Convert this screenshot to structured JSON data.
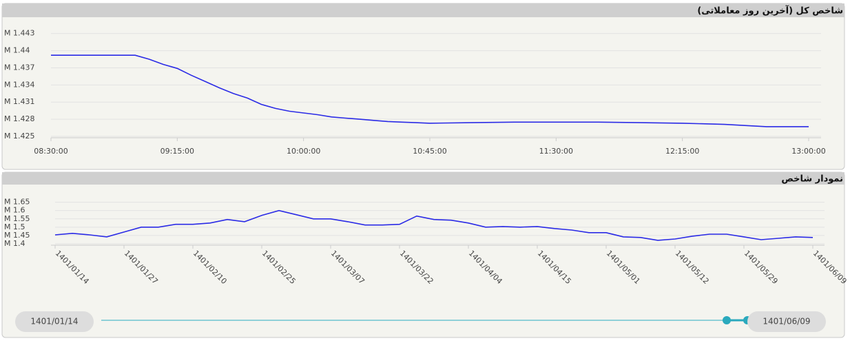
{
  "chart_data": [
    {
      "type": "line",
      "title": "شاخص کل (آخرین روز معاملاتی)",
      "color": "#2a2ae6",
      "grid": true,
      "x": [
        "08:30:00",
        "08:45:00",
        "09:00:00",
        "09:05:00",
        "09:10:00",
        "09:15:00",
        "09:20:00",
        "09:25:00",
        "09:30:00",
        "09:35:00",
        "09:40:00",
        "09:45:00",
        "09:50:00",
        "09:55:00",
        "10:00:00",
        "10:05:00",
        "10:10:00",
        "10:15:00",
        "10:20:00",
        "10:25:00",
        "10:30:00",
        "10:35:00",
        "10:40:00",
        "10:45:00",
        "11:00:00",
        "11:15:00",
        "11:30:00",
        "11:45:00",
        "12:00:00",
        "12:15:00",
        "12:30:00",
        "12:45:00",
        "13:00:00"
      ],
      "values": [
        1.4392,
        1.4392,
        1.4392,
        1.4385,
        1.4376,
        1.4369,
        1.4357,
        1.4346,
        1.4335,
        1.4325,
        1.4317,
        1.4306,
        1.4299,
        1.4294,
        1.4291,
        1.4288,
        1.4284,
        1.4282,
        1.428,
        1.4278,
        1.4276,
        1.4275,
        1.4274,
        1.4273,
        1.4274,
        1.4275,
        1.4275,
        1.4275,
        1.4274,
        1.4273,
        1.4271,
        1.4267,
        1.4267
      ],
      "xlim": [
        "08:30:00",
        "13:04:25"
      ],
      "xticks": [
        "08:30:00",
        "09:15:00",
        "10:00:00",
        "10:45:00",
        "11:30:00",
        "12:15:00",
        "13:00:00"
      ],
      "ylim": [
        1.425,
        1.4455
      ],
      "yticks": [
        {
          "value": 1.425,
          "label": "M 1.425"
        },
        {
          "value": 1.428,
          "label": "M 1.428"
        },
        {
          "value": 1.431,
          "label": "M 1.431"
        },
        {
          "value": 1.434,
          "label": "M 1.434"
        },
        {
          "value": 1.437,
          "label": "M 1.437"
        },
        {
          "value": 1.44,
          "label": "M 1.44"
        },
        {
          "value": 1.443,
          "label": "M 1.443"
        }
      ]
    },
    {
      "type": "line",
      "title": "نمودار شاخص",
      "color": "#2a2ae6",
      "grid": true,
      "categories": [
        "1401/01/14",
        null,
        null,
        null,
        "1401/01/27",
        null,
        null,
        null,
        "1401/02/10",
        null,
        null,
        null,
        "1401/02/25",
        null,
        null,
        null,
        "1401/03/07",
        null,
        null,
        null,
        "1401/03/22",
        null,
        null,
        null,
        "1401/04/04",
        null,
        null,
        null,
        "1401/04/15",
        null,
        null,
        null,
        "1401/05/01",
        null,
        null,
        null,
        "1401/05/12",
        null,
        null,
        null,
        "1401/05/29",
        null,
        null,
        null,
        "1401/06/09"
      ],
      "values": [
        1.454,
        1.463,
        1.454,
        1.442,
        1.471,
        1.5,
        1.5,
        1.517,
        1.517,
        1.525,
        1.546,
        1.533,
        1.571,
        1.6,
        1.575,
        1.55,
        1.55,
        1.533,
        1.513,
        1.513,
        1.517,
        1.567,
        1.546,
        1.542,
        1.525,
        1.5,
        1.504,
        1.5,
        1.504,
        1.492,
        1.483,
        1.467,
        1.467,
        1.442,
        1.438,
        1.421,
        1.429,
        1.446,
        1.458,
        1.458,
        1.442,
        1.425,
        1.433,
        1.442,
        1.438
      ],
      "ylim": [
        1.4,
        1.665
      ],
      "yticks": [
        {
          "value": 1.4,
          "label": "M 1.4"
        },
        {
          "value": 1.45,
          "label": "M 1.45"
        },
        {
          "value": 1.5,
          "label": "M 1.5"
        },
        {
          "value": 1.55,
          "label": "M 1.55"
        },
        {
          "value": 1.6,
          "label": "M 1.6"
        },
        {
          "value": 1.65,
          "label": "M 1.65"
        }
      ]
    }
  ],
  "slider": {
    "start": "1401/01/14",
    "end": "1401/06/09"
  }
}
